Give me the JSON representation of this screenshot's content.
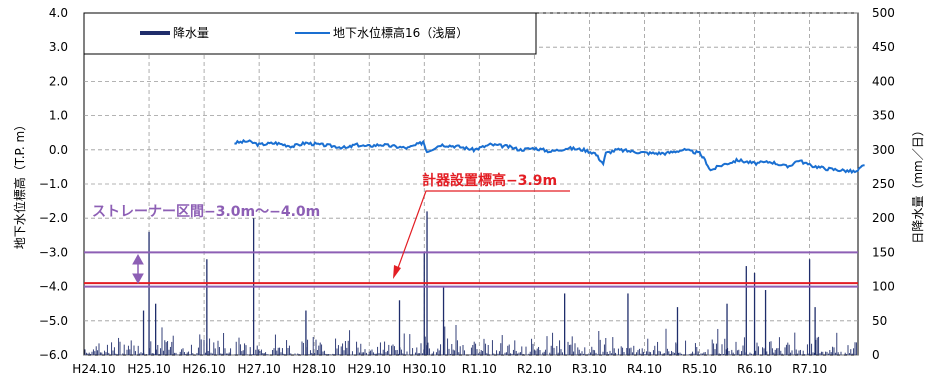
{
  "chart_data": {
    "type": "line",
    "left_axis": {
      "label": "地下水位標高（T.P. m）",
      "ticks": [
        "4.0",
        "3.0",
        "2.0",
        "1.0",
        "0.0",
        "−1.0",
        "−2.0",
        "−3.0",
        "−4.0",
        "−5.0",
        "−6.0"
      ],
      "ylim": [
        -6,
        4
      ]
    },
    "right_axis": {
      "label": "日降水量（mm／日）",
      "ticks": [
        "500",
        "450",
        "400",
        "350",
        "300",
        "250",
        "200",
        "150",
        "100",
        "50",
        "0"
      ],
      "ylim": [
        0,
        500
      ]
    },
    "x_axis": {
      "categories": [
        "H24.10",
        "H25.10",
        "H26.10",
        "H27.10",
        "H28.10",
        "H29.10",
        "H30.10",
        "R1.10",
        "R2.10",
        "R3.10",
        "R4.10",
        "R5.10",
        "R6.10",
        "R7.10"
      ]
    },
    "grid": true,
    "legend": {
      "placement": "top-left",
      "items": [
        {
          "name": "降水量",
          "color": "#1f2d6b",
          "kind": "bar"
        },
        {
          "name": "地下水位標高16（浅層）",
          "color": "#1a6fd1",
          "kind": "line"
        }
      ]
    },
    "series": [
      {
        "name": "地下水位標高16（浅層）",
        "axis": "left",
        "color": "#1a6fd1",
        "x": [
          2.55,
          2.8,
          3.0,
          3.3,
          3.6,
          3.85,
          4.1,
          4.4,
          4.6,
          4.75,
          4.95,
          5.2,
          5.45,
          5.7,
          5.95,
          5.98,
          6.05,
          6.3,
          6.6,
          6.9,
          7.2,
          7.5,
          7.75,
          8.0,
          8.3,
          8.6,
          8.9,
          9.1,
          9.25,
          9.3,
          9.5,
          9.8,
          10.1,
          10.4,
          10.7,
          11.0,
          11.1,
          11.2,
          11.4,
          11.7,
          12.0,
          12.3,
          12.6,
          12.8,
          13.0,
          13.3,
          13.6,
          13.85,
          13.95,
          14.0
        ],
        "y": [
          0.2,
          0.25,
          0.15,
          0.2,
          0.1,
          0.2,
          0.15,
          0.1,
          0.05,
          0.15,
          0.1,
          0.15,
          0.1,
          0.05,
          0.2,
          0.25,
          -0.05,
          0.15,
          0.1,
          0.0,
          0.15,
          0.1,
          0.0,
          0.05,
          -0.05,
          0.05,
          0.0,
          -0.1,
          -0.4,
          -0.1,
          0.0,
          -0.05,
          -0.1,
          -0.1,
          0.0,
          -0.1,
          -0.3,
          -0.6,
          -0.45,
          -0.3,
          -0.4,
          -0.35,
          -0.5,
          -0.3,
          -0.45,
          -0.55,
          -0.6,
          -0.65,
          -0.5,
          -0.45
        ]
      },
      {
        "name": "降水量",
        "axis": "right",
        "color": "#1f2d6b",
        "spikes": [
          {
            "x": 1.0,
            "v": 180
          },
          {
            "x": 0.9,
            "v": 65
          },
          {
            "x": 1.12,
            "v": 75
          },
          {
            "x": 2.05,
            "v": 140
          },
          {
            "x": 2.9,
            "v": 200
          },
          {
            "x": 6.05,
            "v": 210
          },
          {
            "x": 6.0,
            "v": 150
          },
          {
            "x": 6.35,
            "v": 100
          },
          {
            "x": 9.7,
            "v": 90
          },
          {
            "x": 11.85,
            "v": 130
          },
          {
            "x": 12.0,
            "v": 120
          },
          {
            "x": 12.2,
            "v": 95
          },
          {
            "x": 13.0,
            "v": 140
          },
          {
            "x": 13.1,
            "v": 70
          },
          {
            "x": 3.85,
            "v": 65
          },
          {
            "x": 5.55,
            "v": 80
          },
          {
            "x": 8.55,
            "v": 90
          },
          {
            "x": 10.6,
            "v": 70
          },
          {
            "x": 11.5,
            "v": 75
          }
        ]
      }
    ],
    "reference_lines": [
      {
        "label": "ストレーナー区間−3.0m〜−4.0m",
        "y": -3.0,
        "color": "#8d5fb5"
      },
      {
        "y": -4.0,
        "color": "#8d5fb5"
      },
      {
        "label": "計器設置標高−3.9m",
        "y": -3.9,
        "color": "#e31e24"
      }
    ]
  }
}
